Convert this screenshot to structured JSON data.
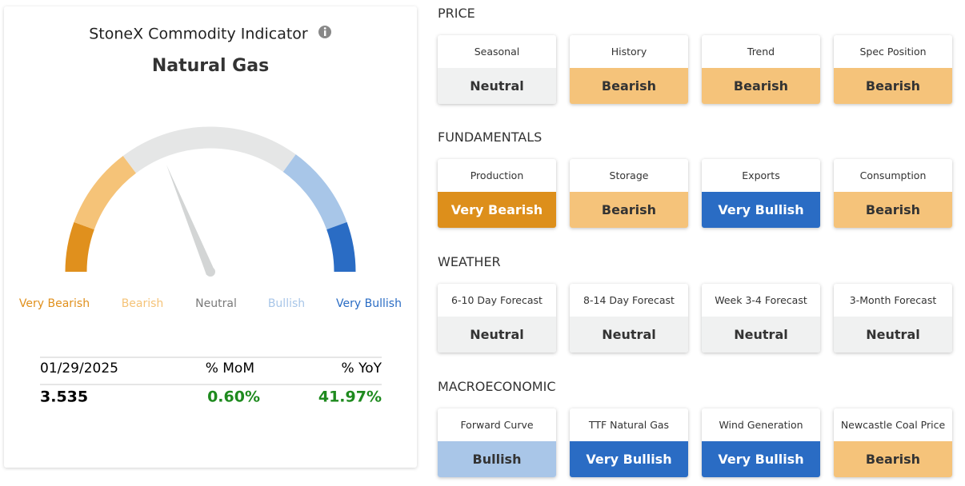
{
  "panel": {
    "title": "StoneX Commodity Indicator",
    "commodity": "Natural Gas",
    "levels": [
      {
        "label": "Very Bearish",
        "color": "#e0901d",
        "arc_color": "#e0901d"
      },
      {
        "label": "Bearish",
        "color": "#f5c378",
        "arc_color": "#f5c378"
      },
      {
        "label": "Neutral",
        "color": "#7a7a7a",
        "arc_color": "#e5e6e6"
      },
      {
        "label": "Bullish",
        "color": "#a8c6e8",
        "arc_color": "#a8c6e8"
      },
      {
        "label": "Very Bullish",
        "color": "#2a6cc4",
        "arc_color": "#2a6cc4"
      }
    ],
    "stats": {
      "date": "01/29/2025",
      "mom_label": "% MoM",
      "yoy_label": "% YoY",
      "price": 3.535,
      "mom": "0.60%",
      "yoy": "41.97%",
      "change_color": "#1e8a1e"
    }
  },
  "sections": [
    {
      "title": "PRICE",
      "cards": [
        {
          "label": "Seasonal",
          "status": "Neutral",
          "color": "#f0f1f1"
        },
        {
          "label": "History",
          "status": "Bearish",
          "color": "#f5c37a"
        },
        {
          "label": "Trend",
          "status": "Bearish",
          "color": "#f5c37a"
        },
        {
          "label": "Spec Position",
          "status": "Bearish",
          "color": "#f5c37a"
        }
      ]
    },
    {
      "title": "FUNDAMENTALS",
      "cards": [
        {
          "label": "Production",
          "status": "Very Bearish",
          "color": "#dd8f1b"
        },
        {
          "label": "Storage",
          "status": "Bearish",
          "color": "#f5c37a"
        },
        {
          "label": "Exports",
          "status": "Very Bullish",
          "color": "#2a6cc4"
        },
        {
          "label": "Consumption",
          "status": "Bearish",
          "color": "#f5c37a"
        }
      ]
    },
    {
      "title": "WEATHER",
      "cards": [
        {
          "label": "6-10 Day Forecast",
          "status": "Neutral",
          "color": "#f0f1f1"
        },
        {
          "label": "8-14 Day Forecast",
          "status": "Neutral",
          "color": "#f0f1f1"
        },
        {
          "label": "Week 3-4 Forecast",
          "status": "Neutral",
          "color": "#f0f1f1"
        },
        {
          "label": "3-Month Forecast",
          "status": "Neutral",
          "color": "#f0f1f1"
        }
      ]
    },
    {
      "title": "MACROECONOMIC",
      "cards": [
        {
          "label": "Forward Curve",
          "status": "Bullish",
          "color": "#a9c6e8"
        },
        {
          "label": "TTF Natural Gas",
          "status": "Very Bullish",
          "color": "#2a6cc4"
        },
        {
          "label": "Wind Generation",
          "status": "Very Bullish",
          "color": "#2a6cc4"
        },
        {
          "label": "Newcastle Coal Price",
          "status": "Bearish",
          "color": "#f5c37a"
        }
      ]
    }
  ]
}
